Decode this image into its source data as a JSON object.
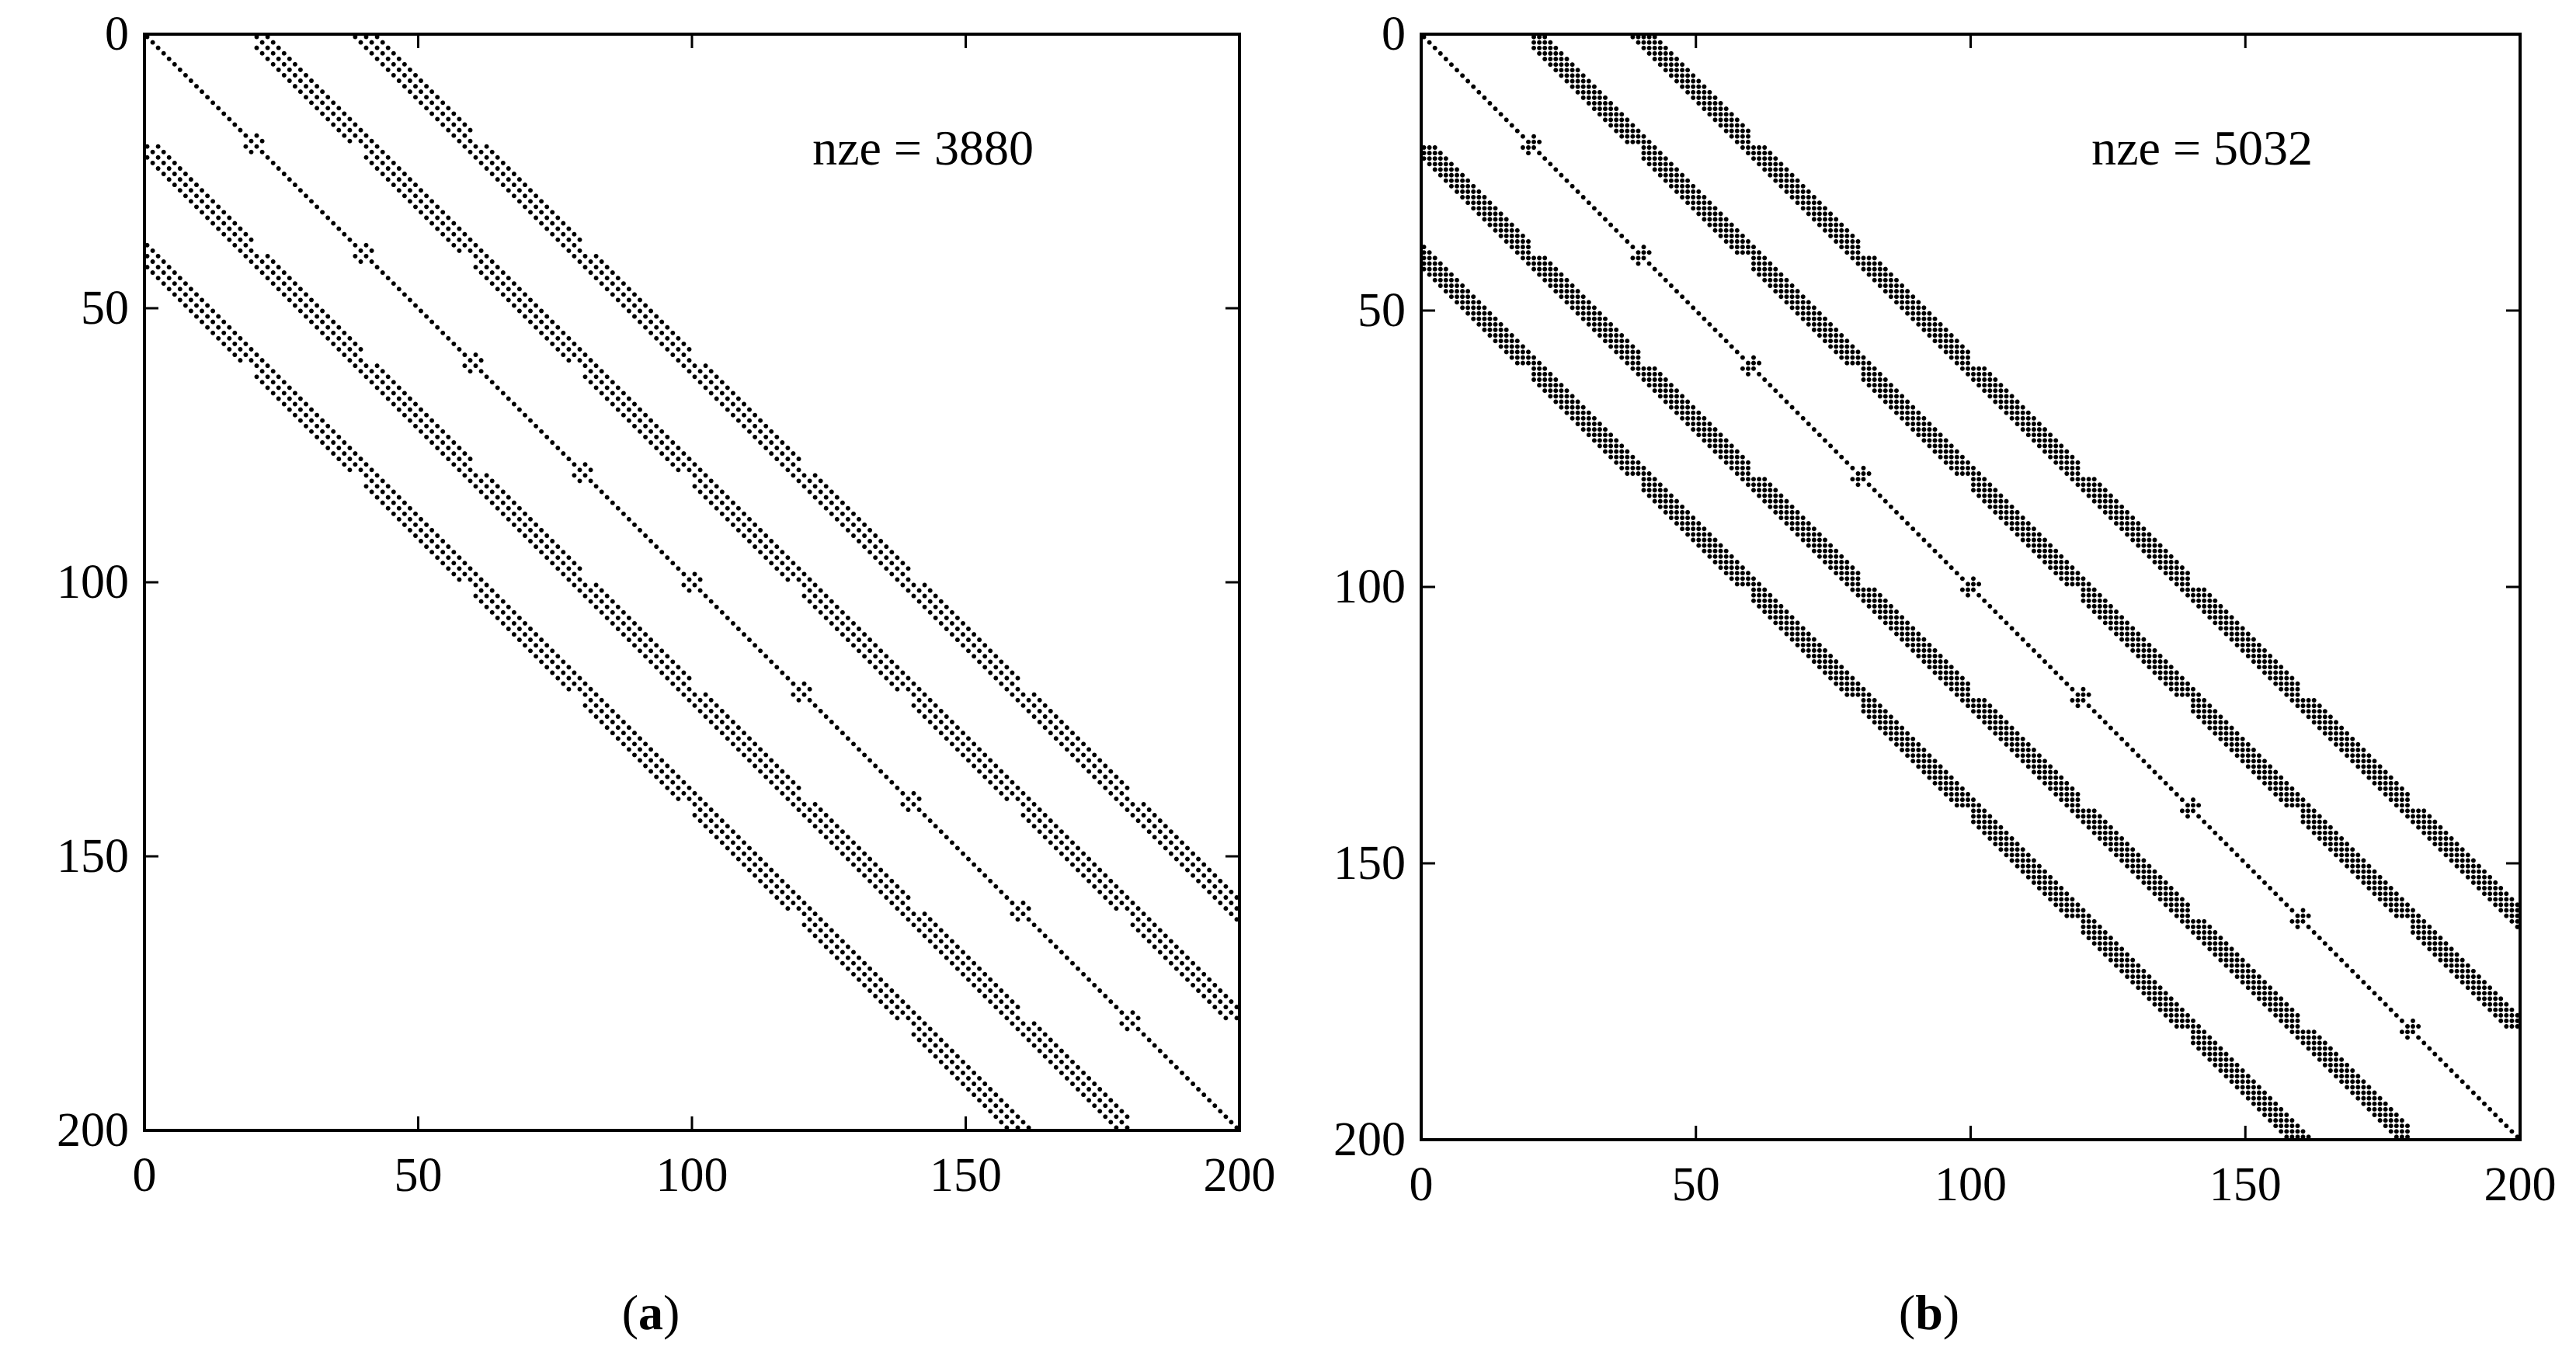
{
  "chart_data": [
    {
      "type": "spy",
      "caption_letter": "a",
      "annotation": "nze = 3880",
      "nze": 3880,
      "xlim": [
        0,
        200
      ],
      "ylim": [
        0,
        200
      ],
      "y_reversed": true,
      "x_ticks": [
        "0",
        "50",
        "100",
        "150",
        "200"
      ],
      "y_ticks": [
        "0",
        "50",
        "100",
        "150",
        "200"
      ],
      "block_size": 20,
      "inner_offsets": [
        -40,
        -20,
        0,
        20,
        40
      ],
      "outer_offsets": [
        -42,
        -40,
        -38,
        -22,
        -20,
        -18,
        -2,
        0,
        2,
        18,
        20,
        22,
        38,
        40,
        42
      ],
      "diagonal_blocks": "stencil",
      "off_diagonal_blocks": "diagonal-bands"
    },
    {
      "type": "spy",
      "caption_letter": "b",
      "annotation": "nze = 5032",
      "nze": 5032,
      "xlim": [
        0,
        200
      ],
      "ylim": [
        0,
        200
      ],
      "y_reversed": true,
      "x_ticks": [
        "0",
        "50",
        "100",
        "150",
        "200"
      ],
      "y_ticks": [
        "0",
        "50",
        "100",
        "150",
        "200"
      ],
      "block_size": 20,
      "inner_offsets": [
        -40,
        -20,
        0,
        20,
        40
      ],
      "outer_offsets": [
        -42,
        -41,
        -40,
        -39,
        -38,
        -22,
        -21,
        -20,
        -19,
        -18,
        -2,
        -1,
        0,
        1,
        2,
        18,
        19,
        20,
        21,
        22,
        38,
        39,
        40,
        41,
        42
      ],
      "diagonal_blocks": "stencil",
      "off_diagonal_blocks": "stencil"
    }
  ]
}
